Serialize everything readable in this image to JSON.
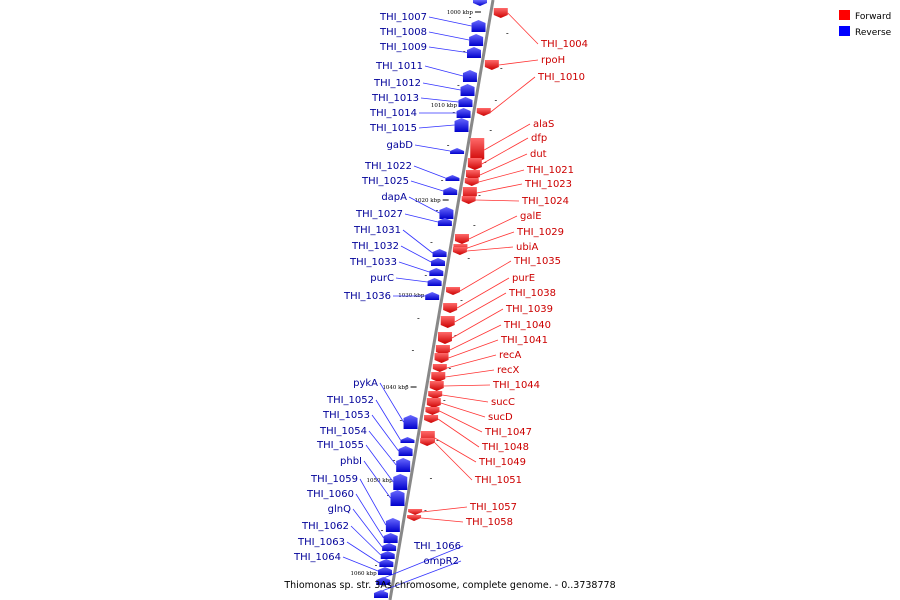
{
  "caption": "Thiomonas sp. str. 3As chromosome, complete genome. - 0..3738778",
  "legend": {
    "forward": {
      "label": "Forward",
      "color": "#ff0000"
    },
    "reverse": {
      "label": "Reverse",
      "color": "#0000ff"
    }
  },
  "colors": {
    "forward_label": "#cc0000",
    "reverse_label": "#000099",
    "forward_line": "#ff3333",
    "reverse_line": "#3333ff",
    "backbone": "#888888"
  },
  "kbp_markers": [
    "1000 kbp",
    "1010 kbp",
    "1020 kbp",
    "1030 kbp",
    "1040 kbp",
    "1050 kbp",
    "1060 kbp"
  ],
  "reverse_genes": [
    "THI_1007",
    "THI_1008",
    "THI_1009",
    "THI_1011",
    "THI_1012",
    "THI_1013",
    "THI_1014",
    "THI_1015",
    "gabD",
    "THI_1022",
    "THI_1025",
    "dapA",
    "THI_1027",
    "THI_1031",
    "THI_1032",
    "THI_1033",
    "purC",
    "THI_1036",
    "pykA",
    "THI_1052",
    "THI_1053",
    "THI_1054",
    "THI_1055",
    "phbI",
    "THI_1059",
    "THI_1060",
    "glnQ",
    "THI_1062",
    "THI_1063",
    "THI_1064",
    "THI_1066",
    "ompR2"
  ],
  "forward_genes": [
    "THI_1004",
    "rpoH",
    "THI_1010",
    "alaS",
    "dfp",
    "dut",
    "THI_1021",
    "THI_1023",
    "THI_1024",
    "galE",
    "THI_1029",
    "ubiA",
    "THI_1035",
    "purE",
    "THI_1038",
    "THI_1039",
    "THI_1040",
    "THI_1041",
    "recA",
    "recX",
    "THI_1044",
    "sucC",
    "sucD",
    "THI_1047",
    "THI_1048",
    "THI_1049",
    "THI_1051",
    "THI_1057",
    "THI_1058"
  ]
}
